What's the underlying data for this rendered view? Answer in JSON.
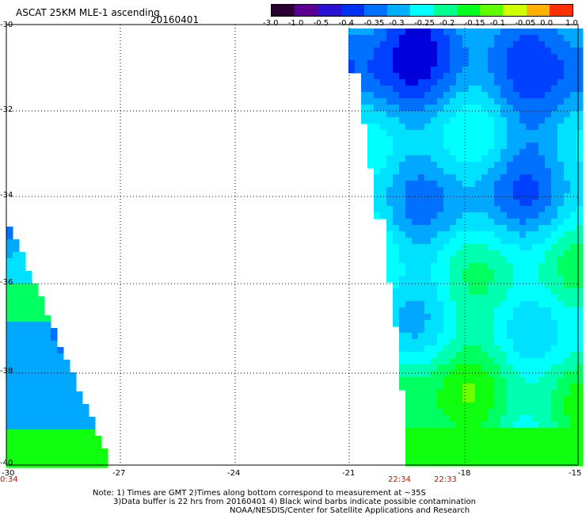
{
  "header": {
    "title": "ASCAT 25KM MLE-1 ascending",
    "date": "20160401"
  },
  "colorbar": {
    "tick_labels": [
      "-3.0",
      "-1.0",
      "-0.5",
      "-0.4",
      "-0.35",
      "-0.3",
      "-0.25",
      "-0.2",
      "-0.15",
      "-0.1",
      "-0.05",
      "0.0",
      "1.0"
    ],
    "colors": [
      "#2a0030",
      "#5a0090",
      "#2a10d0",
      "#0030f0",
      "#0070ff",
      "#00b0ff",
      "#00ffff",
      "#00ff90",
      "#00ff20",
      "#60ff00",
      "#d0ff00",
      "#ffb000",
      "#ff3000"
    ]
  },
  "map": {
    "lat_labels": [
      "-30",
      "-32",
      "-34",
      "-36",
      "-38",
      "-40"
    ],
    "lon_labels": [
      "-30",
      "-27",
      "-24",
      "-21",
      "-18",
      "-15"
    ],
    "time_labels": [
      "0:34",
      "22:34",
      "22:33"
    ]
  },
  "notes": {
    "line1": "Note: 1) Times are GMT 2)Times along bottom correspond to measurement at ~35S",
    "line2": "3)Data buffer is 22 hrs from 20160401 4) Black wind barbs indicate possible contamination",
    "line3": "NOAA/NESDIS/Center for Satellite Applications and Research"
  }
}
